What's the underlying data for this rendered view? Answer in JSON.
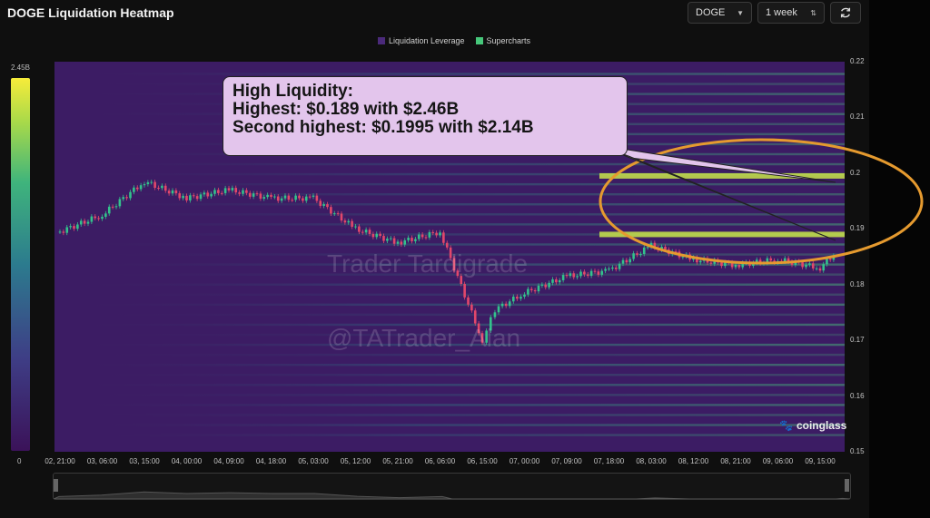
{
  "header": {
    "title": "DOGE Liquidation Heatmap",
    "coin_select": "DOGE",
    "range_select": "1 week"
  },
  "legend": [
    {
      "label": "Liquidation Leverage",
      "color": "#4b2a7b"
    },
    {
      "label": "Supercharts",
      "color": "#46c77a"
    }
  ],
  "colorbar": {
    "max_label": "2.45B",
    "min_label": "0"
  },
  "watermarks": {
    "line1": "Trader Tardigrade",
    "line2": "@TATrader_Alan"
  },
  "brand": "coinglass",
  "callout": {
    "line1": "High Liquidity:",
    "line2": "Highest: $0.189 with $2.46B",
    "line3": "Second highest: $0.1995 with $2.14B"
  },
  "chart_data": {
    "type": "heatmap",
    "title": "DOGE Liquidation Heatmap",
    "x_tick_labels": [
      "02, 21:00",
      "03, 06:00",
      "03, 15:00",
      "04, 00:00",
      "04, 09:00",
      "04, 18:00",
      "05, 03:00",
      "05, 12:00",
      "05, 21:00",
      "06, 06:00",
      "06, 15:00",
      "07, 00:00",
      "07, 09:00",
      "07, 18:00",
      "08, 03:00",
      "08, 12:00",
      "08, 21:00",
      "09, 06:00",
      "09, 15:00"
    ],
    "y_tick_labels": [
      "0.22",
      "0.21",
      "0.2",
      "0.19",
      "0.18",
      "0.17",
      "0.16",
      "0.15"
    ],
    "ylim": [
      0.15,
      0.22
    ],
    "color_scale": {
      "min": 0,
      "max": 2.45,
      "unit": "B"
    },
    "price_path": {
      "x_index": [
        0,
        1,
        2,
        3,
        4,
        5,
        6,
        7,
        8,
        9,
        10,
        10.3,
        11,
        12,
        13,
        14,
        15,
        16,
        17,
        18,
        18.4
      ],
      "price": [
        0.1895,
        0.1925,
        0.1985,
        0.1955,
        0.197,
        0.1955,
        0.1955,
        0.19,
        0.1875,
        0.1895,
        0.17,
        0.1755,
        0.1785,
        0.1815,
        0.1825,
        0.187,
        0.1845,
        0.1835,
        0.1845,
        0.183,
        0.186
      ]
    },
    "high_liquidity_levels": [
      {
        "price": 0.189,
        "value_b": 2.46
      },
      {
        "price": 0.1995,
        "value_b": 2.14
      }
    ]
  }
}
